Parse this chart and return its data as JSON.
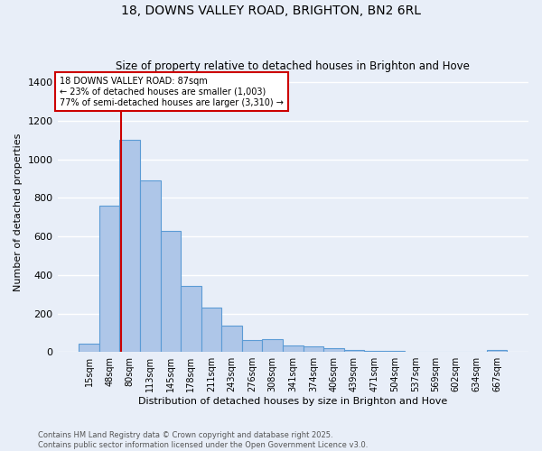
{
  "title": "18, DOWNS VALLEY ROAD, BRIGHTON, BN2 6RL",
  "subtitle": "Size of property relative to detached houses in Brighton and Hove",
  "xlabel": "Distribution of detached houses by size in Brighton and Hove",
  "ylabel": "Number of detached properties",
  "bar_labels": [
    "15sqm",
    "48sqm",
    "80sqm",
    "113sqm",
    "145sqm",
    "178sqm",
    "211sqm",
    "243sqm",
    "276sqm",
    "308sqm",
    "341sqm",
    "374sqm",
    "406sqm",
    "439sqm",
    "471sqm",
    "504sqm",
    "537sqm",
    "569sqm",
    "602sqm",
    "634sqm",
    "667sqm"
  ],
  "bar_values": [
    45,
    760,
    1100,
    890,
    630,
    345,
    230,
    135,
    60,
    68,
    35,
    30,
    20,
    10,
    7,
    5,
    2,
    1,
    1,
    0,
    10
  ],
  "bar_color": "#aec6e8",
  "bar_edge_color": "#5b9bd5",
  "background_color": "#e8eef8",
  "grid_color": "#ffffff",
  "property_line_color": "#cc0000",
  "annotation_title": "18 DOWNS VALLEY ROAD: 87sqm",
  "annotation_line1": "← 23% of detached houses are smaller (1,003)",
  "annotation_line2": "77% of semi-detached houses are larger (3,310) →",
  "annotation_box_color": "#ffffff",
  "annotation_box_edge_color": "#cc0000",
  "ylim": [
    0,
    1450
  ],
  "yticks": [
    0,
    200,
    400,
    600,
    800,
    1000,
    1200,
    1400
  ],
  "footnote1": "Contains HM Land Registry data © Crown copyright and database right 2025.",
  "footnote2": "Contains public sector information licensed under the Open Government Licence v3.0."
}
